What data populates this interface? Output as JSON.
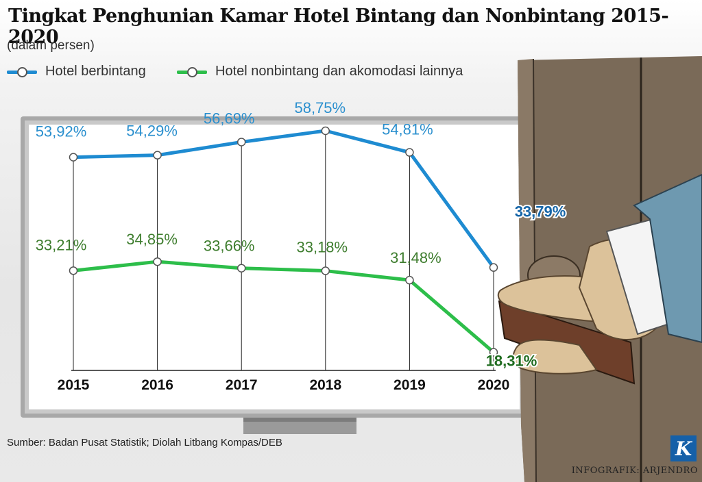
{
  "title": "Tingkat Penghunian Kamar Hotel Bintang dan Nonbintang 2015-2020",
  "unit_note": "(dalam persen)",
  "legend": [
    {
      "label": "Hotel berbintang",
      "color": "#1e8bd1"
    },
    {
      "label": "Hotel nonbintang dan akomodasi lainnya",
      "color": "#2dbe4a"
    }
  ],
  "source_note": "Sumber: Badan Pusat Statistik; Diolah Litbang Kompas/DEB",
  "credit": "INFOGRAFIK: ARJENDRO",
  "logo_letter": "K",
  "chart_data": {
    "type": "line",
    "title": "Tingkat Penghunian Kamar Hotel Bintang dan Nonbintang 2015-2020",
    "ylabel": "(dalam persen)",
    "categories": [
      "2015",
      "2016",
      "2017",
      "2018",
      "2019",
      "2020"
    ],
    "ylim": [
      15,
      62
    ],
    "grid": "vertical",
    "legend_position": "top-left",
    "series": [
      {
        "name": "Hotel berbintang",
        "values": [
          53.92,
          54.29,
          56.69,
          58.75,
          54.81,
          33.79
        ],
        "labels": [
          "53,92%",
          "54,29%",
          "56,69%",
          "58,75%",
          "54,81%",
          "33,79%"
        ],
        "color": "#1e8bd1",
        "label_color": "#2a8fce",
        "highlight_color": "#1565a8"
      },
      {
        "name": "Hotel nonbintang dan akomodasi lainnya",
        "values": [
          33.21,
          34.85,
          33.66,
          33.18,
          31.48,
          18.31
        ],
        "labels": [
          "33,21%",
          "34,85%",
          "33,66%",
          "33,18%",
          "31,48%",
          "18,31%"
        ],
        "color": "#2dbe4a",
        "label_color": "#3e7d2e",
        "highlight_color": "#1f6b1f"
      }
    ]
  },
  "colors": {
    "door": "#7a6a58",
    "door_dark": "#4d4032",
    "sleeve": "#6e99b0",
    "skin": "#dcc29a",
    "handle": "#6e3f2a",
    "monitor_frame": "#a8a8a8"
  }
}
